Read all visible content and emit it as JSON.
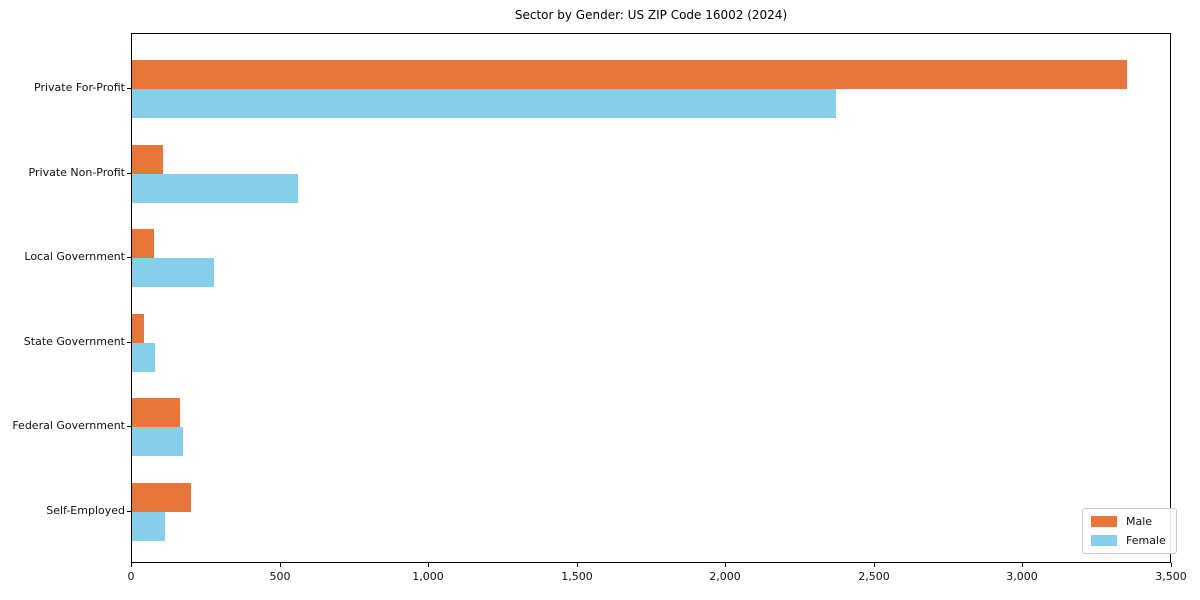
{
  "title": "Sector by Gender: US ZIP Code 16002 (2024)",
  "colors": {
    "male": "#e8763b",
    "female": "#87ceeb",
    "spine": "#000000",
    "legend_border": "#cccccc",
    "background": "#ffffff"
  },
  "chart_data": {
    "type": "bar",
    "orientation": "horizontal",
    "title": "Sector by Gender: US ZIP Code 16002 (2024)",
    "xlabel": "",
    "ylabel": "",
    "categories": [
      "Private For-Profit",
      "Private Non-Profit",
      "Local Government",
      "State Government",
      "Federal Government",
      "Self-Employed"
    ],
    "series": [
      {
        "name": "Male",
        "color": "#e8763b",
        "values": [
          3350,
          105,
          75,
          40,
          160,
          200
        ]
      },
      {
        "name": "Female",
        "color": "#87ceeb",
        "values": [
          2370,
          560,
          275,
          78,
          170,
          110
        ]
      }
    ],
    "xlim": [
      0,
      3500
    ],
    "xticks": [
      0,
      500,
      1000,
      1500,
      2000,
      2500,
      3000,
      3500
    ],
    "xtick_labels": [
      "0",
      "500",
      "1,000",
      "1,500",
      "2,000",
      "2,500",
      "3,000",
      "3,500"
    ],
    "grid": false,
    "legend": {
      "position": "lower right",
      "entries": [
        {
          "label": "Male",
          "color": "#e8763b"
        },
        {
          "label": "Female",
          "color": "#87ceeb"
        }
      ]
    }
  }
}
